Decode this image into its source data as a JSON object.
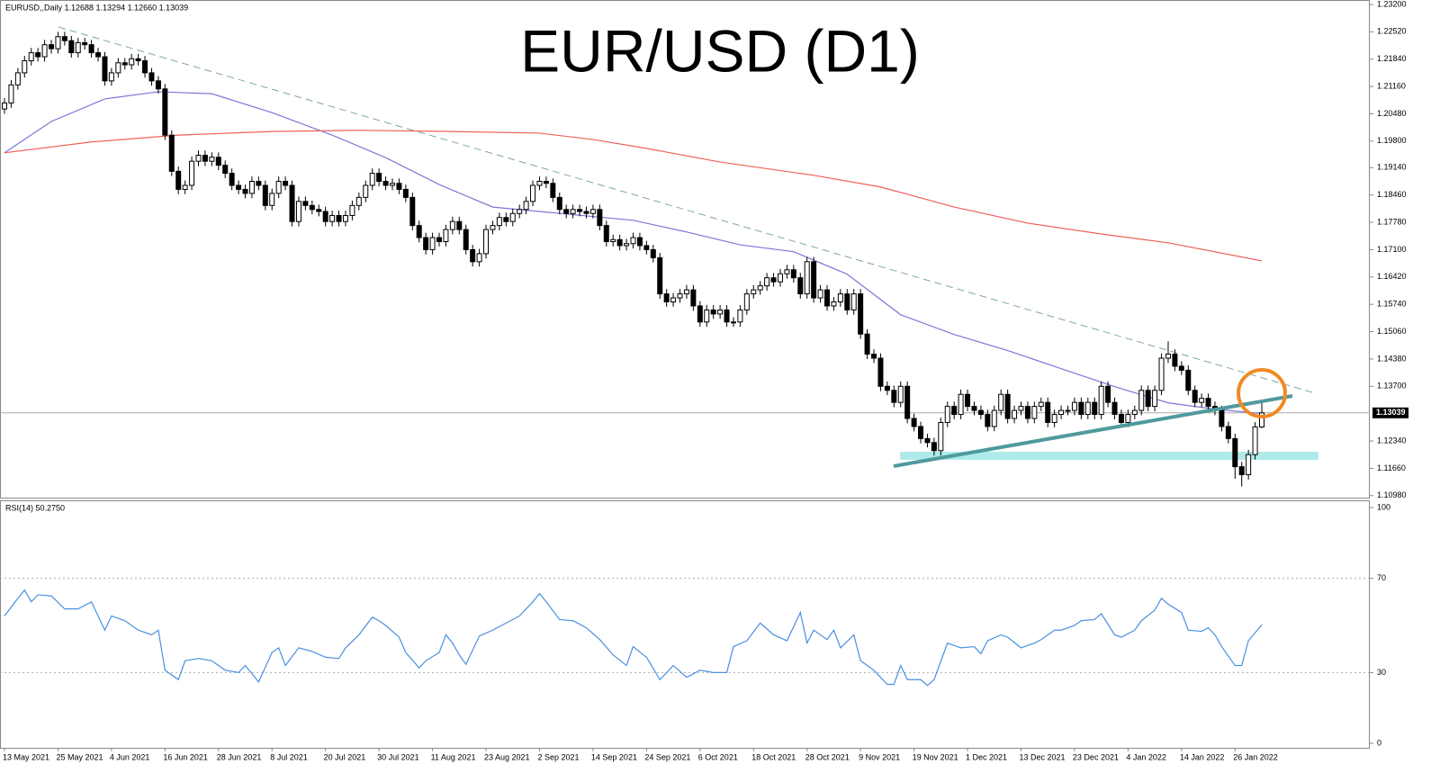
{
  "chart_data": {
    "type": "candlestick",
    "title": "EUR/USD (D1)",
    "header": "EURUSD,,Daily  1.12688 1.13294 1.12660 1.13039",
    "up_color": "#ffffff",
    "down_color": "#000000",
    "wick_color": "#000000",
    "categories": [
      "13 May 2021",
      null,
      null,
      null,
      null,
      null,
      null,
      null,
      "25 May 2021",
      null,
      null,
      null,
      null,
      null,
      null,
      null,
      "4 Jun 2021",
      null,
      null,
      null,
      null,
      null,
      null,
      null,
      "16 Jun 2021",
      null,
      null,
      null,
      null,
      null,
      null,
      null,
      "28 Jun 2021",
      null,
      null,
      null,
      null,
      null,
      null,
      null,
      "8 Jul 2021",
      null,
      null,
      null,
      null,
      null,
      null,
      null,
      "20 Jul 2021",
      null,
      null,
      null,
      null,
      null,
      null,
      null,
      "30 Jul 2021",
      null,
      null,
      null,
      null,
      null,
      null,
      null,
      "11 Aug 2021",
      null,
      null,
      null,
      null,
      null,
      null,
      null,
      "23 Aug 2021",
      null,
      null,
      null,
      null,
      null,
      null,
      null,
      "2 Sep 2021",
      null,
      null,
      null,
      null,
      null,
      null,
      null,
      "14 Sep 2021",
      null,
      null,
      null,
      null,
      null,
      null,
      null,
      "24 Sep 2021",
      null,
      null,
      null,
      null,
      null,
      null,
      null,
      "6 Oct 2021",
      null,
      null,
      null,
      null,
      null,
      null,
      null,
      "18 Oct 2021",
      null,
      null,
      null,
      null,
      null,
      null,
      null,
      "28 Oct 2021",
      null,
      null,
      null,
      null,
      null,
      null,
      null,
      "9 Nov 2021",
      null,
      null,
      null,
      null,
      null,
      null,
      null,
      "19 Nov 2021",
      null,
      null,
      null,
      null,
      null,
      null,
      null,
      "1 Dec 2021",
      null,
      null,
      null,
      null,
      null,
      null,
      null,
      "13 Dec 2021",
      null,
      null,
      null,
      null,
      null,
      null,
      null,
      "23 Dec 2021",
      null,
      null,
      null,
      null,
      null,
      null,
      null,
      "4 Jan 2022",
      null,
      null,
      null,
      null,
      null,
      null,
      null,
      "14 Jan 2022",
      null,
      null,
      null,
      null,
      null,
      null,
      null,
      "26 Jan 2022",
      null,
      null,
      null,
      null
    ],
    "open": [
      1.206,
      1.2075,
      1.212,
      1.215,
      1.218,
      1.22,
      1.219,
      1.222,
      1.221,
      1.224,
      1.223,
      1.22,
      1.2225,
      1.222,
      1.22,
      1.219,
      1.213,
      1.215,
      1.2175,
      1.217,
      1.2185,
      1.218,
      1.215,
      1.213,
      1.211,
      1.1995,
      1.1905,
      1.186,
      1.187,
      1.193,
      1.1945,
      1.193,
      1.194,
      1.192,
      1.19,
      1.187,
      1.186,
      1.185,
      1.188,
      1.187,
      1.182,
      1.185,
      1.188,
      1.187,
      1.178,
      1.183,
      1.182,
      1.181,
      1.1805,
      1.178,
      1.1795,
      1.178,
      1.1795,
      1.182,
      1.184,
      1.187,
      1.19,
      1.188,
      1.187,
      1.1875,
      1.186,
      1.184,
      1.177,
      1.174,
      1.171,
      1.174,
      1.173,
      1.176,
      1.178,
      1.176,
      1.171,
      1.168,
      1.17,
      1.176,
      1.177,
      1.179,
      1.178,
      1.18,
      1.181,
      1.183,
      1.187,
      1.188,
      1.1875,
      1.184,
      1.181,
      1.18,
      1.181,
      1.1805,
      1.18,
      1.181,
      1.177,
      1.173,
      1.1735,
      1.172,
      1.1725,
      1.174,
      1.172,
      1.171,
      1.169,
      1.16,
      1.158,
      1.159,
      1.16,
      1.161,
      1.157,
      1.153,
      1.156,
      1.155,
      1.156,
      1.153,
      1.153,
      1.156,
      1.16,
      1.161,
      1.162,
      1.164,
      1.163,
      1.165,
      1.166,
      1.164,
      1.16,
      1.168,
      1.159,
      1.161,
      1.157,
      1.158,
      1.16,
      1.156,
      1.16,
      1.15,
      1.145,
      1.144,
      1.137,
      1.136,
      1.133,
      1.137,
      1.129,
      1.127,
      1.124,
      1.123,
      1.121,
      1.128,
      1.132,
      1.13,
      1.135,
      1.132,
      1.131,
      1.13,
      1.127,
      1.131,
      1.135,
      1.129,
      1.131,
      1.132,
      1.129,
      1.132,
      1.133,
      1.128,
      1.13,
      1.131,
      1.131,
      1.133,
      1.13,
      1.133,
      1.13,
      1.137,
      1.133,
      1.13,
      1.128,
      1.13,
      1.131,
      1.136,
      1.132,
      1.136,
      1.144,
      1.145,
      1.142,
      1.141,
      1.136,
      1.133,
      1.134,
      1.132,
      1.131,
      1.127,
      1.124,
      1.117,
      1.115,
      1.12,
      1.12688
    ],
    "high": [
      1.2087,
      1.2132,
      1.2162,
      1.2192,
      1.2212,
      1.2212,
      1.2232,
      1.2232,
      1.2252,
      1.2252,
      1.2242,
      1.2237,
      1.2237,
      1.2232,
      1.2212,
      1.2202,
      1.2162,
      1.2187,
      1.2187,
      1.2197,
      1.2197,
      1.2192,
      1.2162,
      1.2142,
      1.2122,
      1.2007,
      1.1917,
      1.1882,
      1.1942,
      1.1957,
      1.1957,
      1.1952,
      1.1952,
      1.1932,
      1.1912,
      1.1882,
      1.1872,
      1.1892,
      1.1892,
      1.1882,
      1.1862,
      1.1892,
      1.1892,
      1.1882,
      1.1842,
      1.1842,
      1.1832,
      1.1822,
      1.1817,
      1.1807,
      1.1807,
      1.1807,
      1.1832,
      1.1852,
      1.1882,
      1.1912,
      1.1912,
      1.1892,
      1.1887,
      1.1887,
      1.1872,
      1.1852,
      1.1782,
      1.1752,
      1.1752,
      1.1752,
      1.1772,
      1.1792,
      1.1792,
      1.1772,
      1.1722,
      1.1712,
      1.1772,
      1.1782,
      1.1802,
      1.1802,
      1.1812,
      1.1822,
      1.1842,
      1.1882,
      1.1892,
      1.1892,
      1.1887,
      1.1852,
      1.1822,
      1.1822,
      1.1822,
      1.1817,
      1.1822,
      1.1822,
      1.1782,
      1.1747,
      1.1747,
      1.1737,
      1.1752,
      1.1752,
      1.1732,
      1.1722,
      1.1702,
      1.1612,
      1.1602,
      1.1612,
      1.1622,
      1.1622,
      1.1582,
      1.1572,
      1.1572,
      1.1572,
      1.1572,
      1.1542,
      1.1572,
      1.1612,
      1.1622,
      1.1632,
      1.1652,
      1.1652,
      1.1662,
      1.1672,
      1.1672,
      1.1652,
      1.1692,
      1.1692,
      1.1622,
      1.1622,
      1.1592,
      1.1612,
      1.1612,
      1.1612,
      1.1612,
      1.1512,
      1.1462,
      1.1452,
      1.1382,
      1.1372,
      1.1382,
      1.1382,
      1.1302,
      1.1282,
      1.1252,
      1.1242,
      1.1292,
      1.1332,
      1.1332,
      1.1362,
      1.1362,
      1.1332,
      1.1322,
      1.1312,
      1.1322,
      1.1362,
      1.1362,
      1.1322,
      1.1332,
      1.1332,
      1.1332,
      1.1342,
      1.1342,
      1.1312,
      1.1322,
      1.1322,
      1.1342,
      1.1342,
      1.1342,
      1.1342,
      1.1382,
      1.1382,
      1.1342,
      1.1312,
      1.1312,
      1.1322,
      1.1372,
      1.1372,
      1.1372,
      1.1452,
      1.1482,
      1.1462,
      1.1432,
      1.1422,
      1.1372,
      1.1352,
      1.1352,
      1.1332,
      1.1322,
      1.1282,
      1.1252,
      1.1182,
      1.1212,
      1.1281,
      1.13294
    ],
    "low": [
      1.2048,
      1.2063,
      1.2108,
      1.2138,
      1.2168,
      1.2178,
      1.2178,
      1.2198,
      1.2198,
      1.2218,
      1.2188,
      1.2188,
      1.2208,
      1.2188,
      1.2178,
      1.2118,
      1.2118,
      1.2138,
      1.2158,
      1.2158,
      1.2168,
      1.2138,
      1.2118,
      1.2098,
      1.1983,
      1.1893,
      1.1848,
      1.1848,
      1.1858,
      1.1918,
      1.1918,
      1.1918,
      1.1908,
      1.1888,
      1.1858,
      1.1848,
      1.1838,
      1.1838,
      1.1858,
      1.1808,
      1.1808,
      1.1838,
      1.1858,
      1.1768,
      1.1768,
      1.1808,
      1.1798,
      1.1793,
      1.1768,
      1.1768,
      1.1768,
      1.1768,
      1.1783,
      1.1808,
      1.1828,
      1.1858,
      1.1868,
      1.1858,
      1.1858,
      1.1848,
      1.1828,
      1.1758,
      1.1728,
      1.1698,
      1.1698,
      1.1718,
      1.1718,
      1.1748,
      1.1748,
      1.1698,
      1.1668,
      1.1668,
      1.1688,
      1.1748,
      1.1758,
      1.1768,
      1.1768,
      1.1788,
      1.1798,
      1.1818,
      1.1858,
      1.1863,
      1.1828,
      1.1798,
      1.1788,
      1.1788,
      1.1793,
      1.1788,
      1.1788,
      1.1758,
      1.1718,
      1.1718,
      1.1708,
      1.1708,
      1.1713,
      1.1708,
      1.1698,
      1.1678,
      1.1588,
      1.1568,
      1.1568,
      1.1578,
      1.1588,
      1.1558,
      1.1518,
      1.1518,
      1.1538,
      1.1538,
      1.1518,
      1.1518,
      1.1518,
      1.1548,
      1.1588,
      1.1598,
      1.1608,
      1.1618,
      1.1618,
      1.1638,
      1.1628,
      1.1588,
      1.1588,
      1.1578,
      1.1578,
      1.1558,
      1.1558,
      1.1568,
      1.1548,
      1.1548,
      1.1488,
      1.1438,
      1.1428,
      1.1358,
      1.1348,
      1.1318,
      1.1318,
      1.1278,
      1.1258,
      1.1228,
      1.1218,
      1.1198,
      1.1198,
      1.1268,
      1.1288,
      1.1288,
      1.1308,
      1.1298,
      1.1288,
      1.1258,
      1.1258,
      1.1298,
      1.1278,
      1.1278,
      1.1298,
      1.1278,
      1.1278,
      1.1308,
      1.1268,
      1.1268,
      1.1288,
      1.1298,
      1.1298,
      1.1288,
      1.1288,
      1.1288,
      1.1288,
      1.1318,
      1.1288,
      1.1268,
      1.1268,
      1.1288,
      1.1298,
      1.1308,
      1.1308,
      1.1348,
      1.1428,
      1.1408,
      1.1398,
      1.1348,
      1.1318,
      1.1318,
      1.1308,
      1.1298,
      1.1258,
      1.1228,
      1.114,
      1.1121,
      1.1138,
      1.1188,
      1.1266
    ],
    "close": [
      1.2075,
      1.212,
      1.215,
      1.218,
      1.22,
      1.219,
      1.222,
      1.221,
      1.224,
      1.223,
      1.22,
      1.2225,
      1.222,
      1.22,
      1.219,
      1.213,
      1.215,
      1.2175,
      1.217,
      1.2185,
      1.218,
      1.215,
      1.213,
      1.211,
      1.1995,
      1.1905,
      1.186,
      1.187,
      1.193,
      1.1945,
      1.193,
      1.194,
      1.192,
      1.19,
      1.187,
      1.186,
      1.185,
      1.188,
      1.187,
      1.182,
      1.185,
      1.188,
      1.187,
      1.178,
      1.183,
      1.182,
      1.181,
      1.1805,
      1.178,
      1.1795,
      1.178,
      1.1795,
      1.182,
      1.184,
      1.187,
      1.19,
      1.188,
      1.187,
      1.1875,
      1.186,
      1.184,
      1.177,
      1.174,
      1.171,
      1.174,
      1.173,
      1.176,
      1.178,
      1.176,
      1.171,
      1.168,
      1.17,
      1.176,
      1.177,
      1.179,
      1.178,
      1.18,
      1.181,
      1.183,
      1.187,
      1.188,
      1.1875,
      1.184,
      1.181,
      1.18,
      1.181,
      1.1805,
      1.18,
      1.181,
      1.177,
      1.173,
      1.1735,
      1.172,
      1.1725,
      1.174,
      1.172,
      1.171,
      1.169,
      1.16,
      1.158,
      1.159,
      1.16,
      1.161,
      1.157,
      1.153,
      1.156,
      1.155,
      1.156,
      1.153,
      1.153,
      1.156,
      1.16,
      1.161,
      1.162,
      1.164,
      1.163,
      1.165,
      1.166,
      1.164,
      1.16,
      1.168,
      1.159,
      1.161,
      1.157,
      1.158,
      1.16,
      1.156,
      1.16,
      1.15,
      1.145,
      1.144,
      1.137,
      1.136,
      1.133,
      1.137,
      1.129,
      1.127,
      1.124,
      1.123,
      1.121,
      1.128,
      1.132,
      1.13,
      1.135,
      1.132,
      1.131,
      1.13,
      1.127,
      1.131,
      1.135,
      1.129,
      1.131,
      1.132,
      1.129,
      1.132,
      1.133,
      1.128,
      1.13,
      1.131,
      1.131,
      1.133,
      1.13,
      1.133,
      1.13,
      1.137,
      1.133,
      1.13,
      1.128,
      1.13,
      1.131,
      1.136,
      1.132,
      1.136,
      1.144,
      1.145,
      1.142,
      1.141,
      1.136,
      1.133,
      1.134,
      1.132,
      1.131,
      1.127,
      1.124,
      1.117,
      1.115,
      1.12,
      1.1269,
      1.13039
    ],
    "ylim": [
      1.1093,
      1.232
    ],
    "yticks": [
      {
        "value": 1.232,
        "label": "1.23200"
      },
      {
        "value": 1.2252,
        "label": "1.22520"
      },
      {
        "value": 1.2184,
        "label": "1.21840"
      },
      {
        "value": 1.2116,
        "label": "1.21160"
      },
      {
        "value": 1.2048,
        "label": "1.20480"
      },
      {
        "value": 1.198,
        "label": "1.19800"
      },
      {
        "value": 1.1914,
        "label": "1.19140"
      },
      {
        "value": 1.1846,
        "label": "1.18460"
      },
      {
        "value": 1.1778,
        "label": "1.17780"
      },
      {
        "value": 1.171,
        "label": "1.17100"
      },
      {
        "value": 1.1642,
        "label": "1.16420"
      },
      {
        "value": 1.1574,
        "label": "1.15740"
      },
      {
        "value": 1.1506,
        "label": "1.15060"
      },
      {
        "value": 1.1438,
        "label": "1.14380"
      },
      {
        "value": 1.137,
        "label": "1.13700"
      },
      {
        "value": 1.1234,
        "label": "1.12340"
      },
      {
        "value": 1.1166,
        "label": "1.11660"
      },
      {
        "value": 1.1098,
        "label": "1.10980"
      }
    ],
    "last_price": {
      "value": 1.13039,
      "label": "1.13039"
    },
    "moving_averages": [
      {
        "color": "#7b78d8",
        "x": [
          0,
          7,
          15,
          23,
          31,
          40,
          49,
          57,
          65,
          73,
          80,
          87,
          94,
          102,
          110,
          118,
          126,
          134,
          142,
          150,
          158,
          166,
          174,
          181,
          188
        ],
        "values": [
          1.1951,
          1.2029,
          1.2085,
          1.2103,
          1.2098,
          1.2051,
          1.1995,
          1.1939,
          1.1872,
          1.1816,
          1.1805,
          1.1794,
          1.1783,
          1.1754,
          1.1722,
          1.1705,
          1.1649,
          1.1548,
          1.1499,
          1.1459,
          1.1414,
          1.1369,
          1.1329,
          1.1313,
          1.1302
        ]
      },
      {
        "color": "#f0605a",
        "x": [
          0,
          13,
          26,
          40,
          53,
          67,
          80,
          88,
          96,
          107,
          121,
          131,
          142,
          153,
          164,
          174,
          188
        ],
        "values": [
          1.1951,
          1.1978,
          1.1995,
          1.2004,
          1.2007,
          1.2004,
          1.2,
          1.1984,
          1.1962,
          1.1928,
          1.1895,
          1.1866,
          1.1816,
          1.1776,
          1.1749,
          1.1727,
          1.1682
        ]
      }
    ],
    "rsi": {
      "label": "RSI(14) 50.2750",
      "color": "#4a8fe0",
      "ylim": [
        0,
        100
      ],
      "yticks": [
        0,
        30,
        70,
        100
      ],
      "levels": [
        30,
        70
      ],
      "x": [
        0,
        2,
        3,
        4,
        5,
        7,
        9,
        11,
        13,
        15,
        16,
        18,
        20,
        22,
        23,
        24,
        26,
        27,
        29,
        31,
        33,
        35,
        36,
        38,
        40,
        41,
        42,
        44,
        46,
        48,
        50,
        51,
        53,
        55,
        56,
        57,
        59,
        60,
        62,
        63,
        65,
        66,
        67,
        68,
        69,
        71,
        73,
        75,
        77,
        79,
        80,
        81,
        83,
        85,
        87,
        89,
        91,
        93,
        94,
        96,
        98,
        100,
        102,
        104,
        106,
        108,
        109,
        111,
        113,
        115,
        117,
        119,
        120,
        121,
        123,
        124,
        125,
        127,
        128,
        130,
        132,
        133,
        134,
        135,
        137,
        138,
        139,
        141,
        143,
        145,
        146,
        147,
        149,
        150,
        152,
        154,
        155,
        157,
        158,
        160,
        161,
        163,
        164,
        166,
        167,
        169,
        170,
        172,
        173,
        174,
        176,
        177,
        179,
        180,
        181,
        182,
        184,
        185,
        186,
        188
      ],
      "values": [
        54,
        61.5,
        65,
        60,
        63,
        62.5,
        57,
        57,
        60,
        48,
        54,
        52,
        48,
        46,
        48,
        31,
        27,
        35,
        36,
        35,
        31,
        30,
        33,
        26,
        38.5,
        40.5,
        33,
        40.5,
        39,
        36.5,
        36,
        40.5,
        46,
        53.5,
        52,
        50,
        45,
        38.5,
        32,
        35,
        38.5,
        46,
        42.5,
        37.5,
        33.5,
        45.5,
        48,
        51,
        54,
        60,
        63.5,
        60,
        52.5,
        52,
        49,
        44,
        37.5,
        33,
        41,
        36.5,
        27,
        33,
        28,
        31,
        30,
        30,
        41,
        43.5,
        51,
        46,
        43.5,
        55.5,
        42.5,
        48,
        44,
        48,
        40.5,
        46,
        35,
        31,
        25,
        25,
        33,
        27,
        27,
        24.5,
        27,
        42.5,
        40.5,
        41,
        38,
        43.5,
        46,
        45,
        40.5,
        42.5,
        44,
        48,
        48,
        50,
        52,
        52.5,
        55,
        46,
        45,
        48,
        52,
        56.5,
        61.5,
        59,
        55.5,
        48,
        47.5,
        49,
        46,
        41,
        33,
        33,
        43.5,
        50.275
      ]
    }
  }
}
